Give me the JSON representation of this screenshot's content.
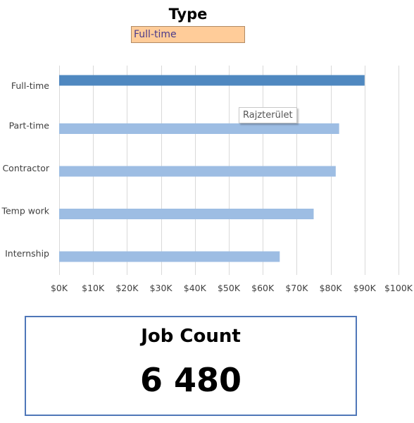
{
  "slicer": {
    "title": "Type",
    "selected": "Full-time"
  },
  "tooltip": {
    "text": "Rajzterület"
  },
  "kpi": {
    "label": "Job Count",
    "value": "6 480"
  },
  "colors": {
    "selected_bar": "#4f88c0",
    "other_bar": "#9dbde3",
    "gridline": "#d9d9d9",
    "slicer_fill": "#ffcc99",
    "card_border": "#4f77b8"
  },
  "chart_data": {
    "type": "bar",
    "orientation": "horizontal",
    "categories": [
      "Full-time",
      "Part-time",
      "Contractor",
      "Temp work",
      "Internship"
    ],
    "values": [
      90000,
      82500,
      81500,
      75000,
      65000
    ],
    "highlighted_category": "Full-time",
    "xlim": [
      0,
      100000
    ],
    "x_ticks": [
      0,
      10000,
      20000,
      30000,
      40000,
      50000,
      60000,
      70000,
      80000,
      90000,
      100000
    ],
    "x_tick_labels": [
      "$0K",
      "$10K",
      "$20K",
      "$30K",
      "$40K",
      "$50K",
      "$60K",
      "$70K",
      "$80K",
      "$90K",
      "$100K"
    ],
    "grid": true,
    "legend": false
  }
}
